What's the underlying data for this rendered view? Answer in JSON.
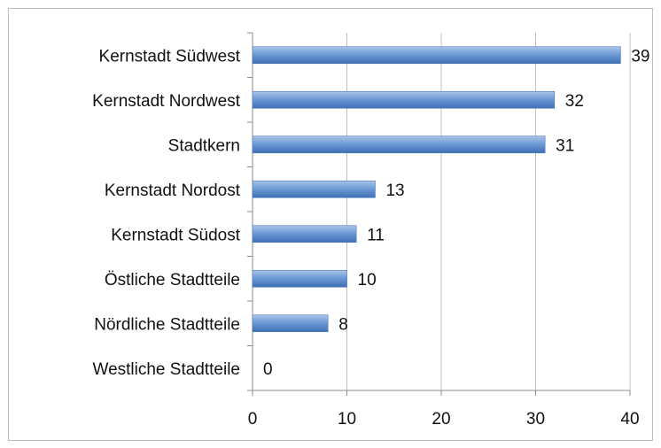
{
  "chart_data": {
    "type": "bar",
    "orientation": "horizontal",
    "categories": [
      "Kernstadt Südwest",
      "Kernstadt Nordwest",
      "Stadtkern",
      "Kernstadt Nordost",
      "Kernstadt Südost",
      "Östliche Stadtteile",
      "Nördliche Stadtteile",
      "Westliche Stadtteile"
    ],
    "values": [
      39,
      32,
      31,
      13,
      11,
      10,
      8,
      0
    ],
    "data_labels": [
      "39",
      "32",
      "31",
      "13",
      "11",
      "10",
      "8",
      "0"
    ],
    "x_ticks": [
      "0",
      "10",
      "20",
      "30",
      "40"
    ],
    "xlim": [
      0,
      40
    ],
    "grid": "vertical",
    "legend": "none",
    "bar_color": "#4f81bd"
  }
}
